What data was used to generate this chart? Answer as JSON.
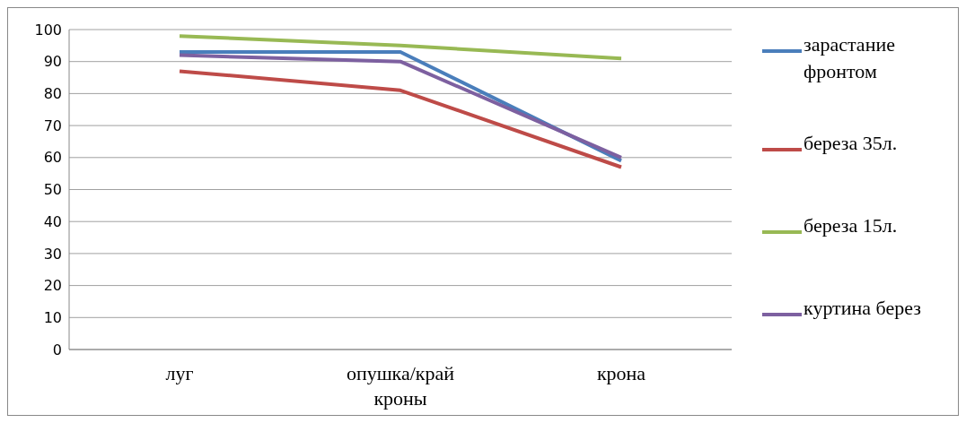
{
  "chart_data": {
    "type": "line",
    "categories": [
      "луг",
      "опушка/край кроны",
      "крона"
    ],
    "series": [
      {
        "name": "зарастание фронтом",
        "color": "#4a7ebb",
        "values": [
          93,
          93,
          59
        ]
      },
      {
        "name": "береза 35л.",
        "color": "#be4b48",
        "values": [
          87,
          81,
          57
        ]
      },
      {
        "name": "береза 15л.",
        "color": "#98b954",
        "values": [
          98,
          95,
          91
        ]
      },
      {
        "name": "куртина берез",
        "color": "#7d60a0",
        "values": [
          92,
          90,
          60
        ]
      }
    ],
    "ylim": [
      0,
      100
    ],
    "yticks": [
      0,
      10,
      20,
      30,
      40,
      50,
      60,
      70,
      80,
      90,
      100
    ],
    "grid": "y",
    "legend": "right",
    "marker": "none",
    "line_style": "solid"
  }
}
